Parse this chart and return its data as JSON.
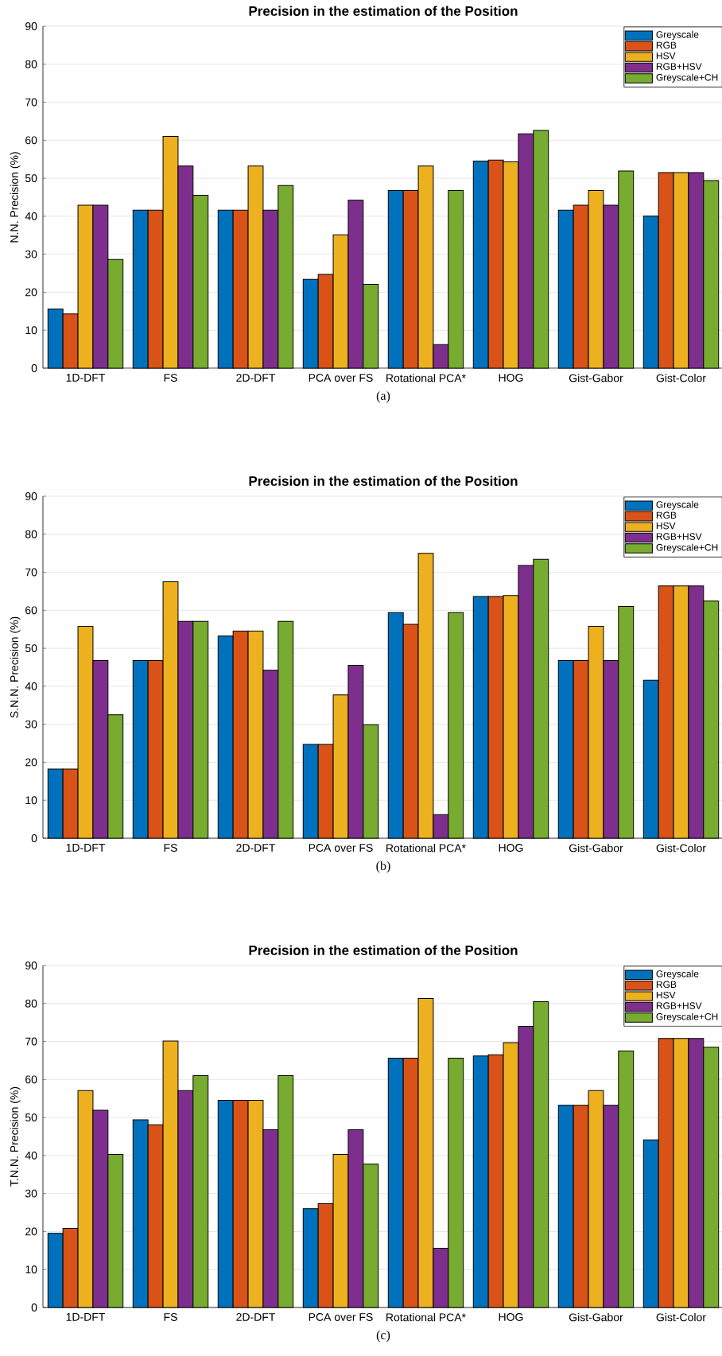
{
  "chart_data": [
    {
      "type": "bar",
      "title": "Precision in the estimation of the Position",
      "ylabel": "N.N. Precision (%)",
      "annotations": [
        "(a)"
      ],
      "categories": [
        "1D-DFT",
        "FS",
        "2D-DFT",
        "PCA over FS",
        "Rotational PCA*",
        "HOG",
        "Gist-Gabor",
        "Gist-Color"
      ],
      "series": [
        {
          "name": "Greyscale",
          "color": "#0072bd",
          "values": [
            15.6,
            41.6,
            41.6,
            23.4,
            46.8,
            54.5,
            41.6,
            40.0
          ]
        },
        {
          "name": "RGB",
          "color": "#d95319",
          "values": [
            14.3,
            41.6,
            41.6,
            24.7,
            46.8,
            54.8,
            42.9,
            51.5
          ]
        },
        {
          "name": "HSV",
          "color": "#edb120",
          "values": [
            42.9,
            61.0,
            53.2,
            35.1,
            53.2,
            54.3,
            46.8,
            51.5
          ]
        },
        {
          "name": "RGB+HSV",
          "color": "#7e2f8e",
          "values": [
            42.9,
            53.2,
            41.6,
            44.2,
            6.2,
            61.7,
            42.9,
            51.5
          ]
        },
        {
          "name": "Greyscale+CH",
          "color": "#77ac30",
          "values": [
            28.6,
            45.5,
            48.1,
            22.1,
            46.8,
            62.6,
            51.9,
            49.4
          ]
        }
      ],
      "ylim": [
        0,
        90
      ],
      "yticks": [
        0,
        10,
        20,
        30,
        40,
        50,
        60,
        70,
        80,
        90
      ],
      "grid": "y",
      "legend": "top right"
    },
    {
      "type": "bar",
      "title": "Precision in the estimation of the Position",
      "ylabel": "S.N.N. Precision (%)",
      "annotations": [
        "(b)"
      ],
      "categories": [
        "1D-DFT",
        "FS",
        "2D-DFT",
        "PCA over FS",
        "Rotational PCA*",
        "HOG",
        "Gist-Gabor",
        "Gist-Color"
      ],
      "series": [
        {
          "name": "Greyscale",
          "color": "#0072bd",
          "values": [
            18.2,
            46.8,
            53.2,
            24.7,
            59.4,
            63.6,
            46.8,
            41.6
          ]
        },
        {
          "name": "RGB",
          "color": "#d95319",
          "values": [
            18.2,
            46.8,
            54.5,
            24.7,
            56.3,
            63.6,
            46.8,
            66.4
          ]
        },
        {
          "name": "HSV",
          "color": "#edb120",
          "values": [
            55.8,
            67.5,
            54.5,
            37.7,
            75.0,
            63.9,
            55.8,
            66.4
          ]
        },
        {
          "name": "RGB+HSV",
          "color": "#7e2f8e",
          "values": [
            46.8,
            57.1,
            44.2,
            45.5,
            6.2,
            71.8,
            46.8,
            66.4
          ]
        },
        {
          "name": "Greyscale+CH",
          "color": "#77ac30",
          "values": [
            32.5,
            57.1,
            57.1,
            29.9,
            59.4,
            73.4,
            61.0,
            62.4
          ]
        }
      ],
      "ylim": [
        0,
        90
      ],
      "yticks": [
        0,
        10,
        20,
        30,
        40,
        50,
        60,
        70,
        80,
        90
      ],
      "grid": "y",
      "legend": "top right"
    },
    {
      "type": "bar",
      "title": "Precision in the estimation of the Position",
      "ylabel": "T.N.N. Precision (%)",
      "annotations": [
        "(c)"
      ],
      "categories": [
        "1D-DFT",
        "FS",
        "2D-DFT",
        "PCA over FS",
        "Rotational PCA*",
        "HOG",
        "Gist-Gabor",
        "Gist-Color"
      ],
      "series": [
        {
          "name": "Greyscale",
          "color": "#0072bd",
          "values": [
            19.5,
            49.4,
            54.5,
            26.0,
            65.6,
            66.2,
            53.2,
            44.1
          ]
        },
        {
          "name": "RGB",
          "color": "#d95319",
          "values": [
            20.8,
            48.1,
            54.5,
            27.3,
            65.6,
            66.5,
            53.2,
            70.8
          ]
        },
        {
          "name": "HSV",
          "color": "#edb120",
          "values": [
            57.1,
            70.1,
            54.5,
            40.3,
            81.3,
            69.7,
            57.1,
            70.8
          ]
        },
        {
          "name": "RGB+HSV",
          "color": "#7e2f8e",
          "values": [
            51.9,
            57.1,
            46.8,
            46.8,
            15.6,
            74.0,
            53.2,
            70.8
          ]
        },
        {
          "name": "Greyscale+CH",
          "color": "#77ac30",
          "values": [
            40.3,
            61.0,
            61.0,
            37.7,
            65.6,
            80.5,
            67.5,
            68.5
          ]
        }
      ],
      "ylim": [
        0,
        90
      ],
      "yticks": [
        0,
        10,
        20,
        30,
        40,
        50,
        60,
        70,
        80,
        90
      ],
      "grid": "y",
      "legend": "top right"
    }
  ]
}
